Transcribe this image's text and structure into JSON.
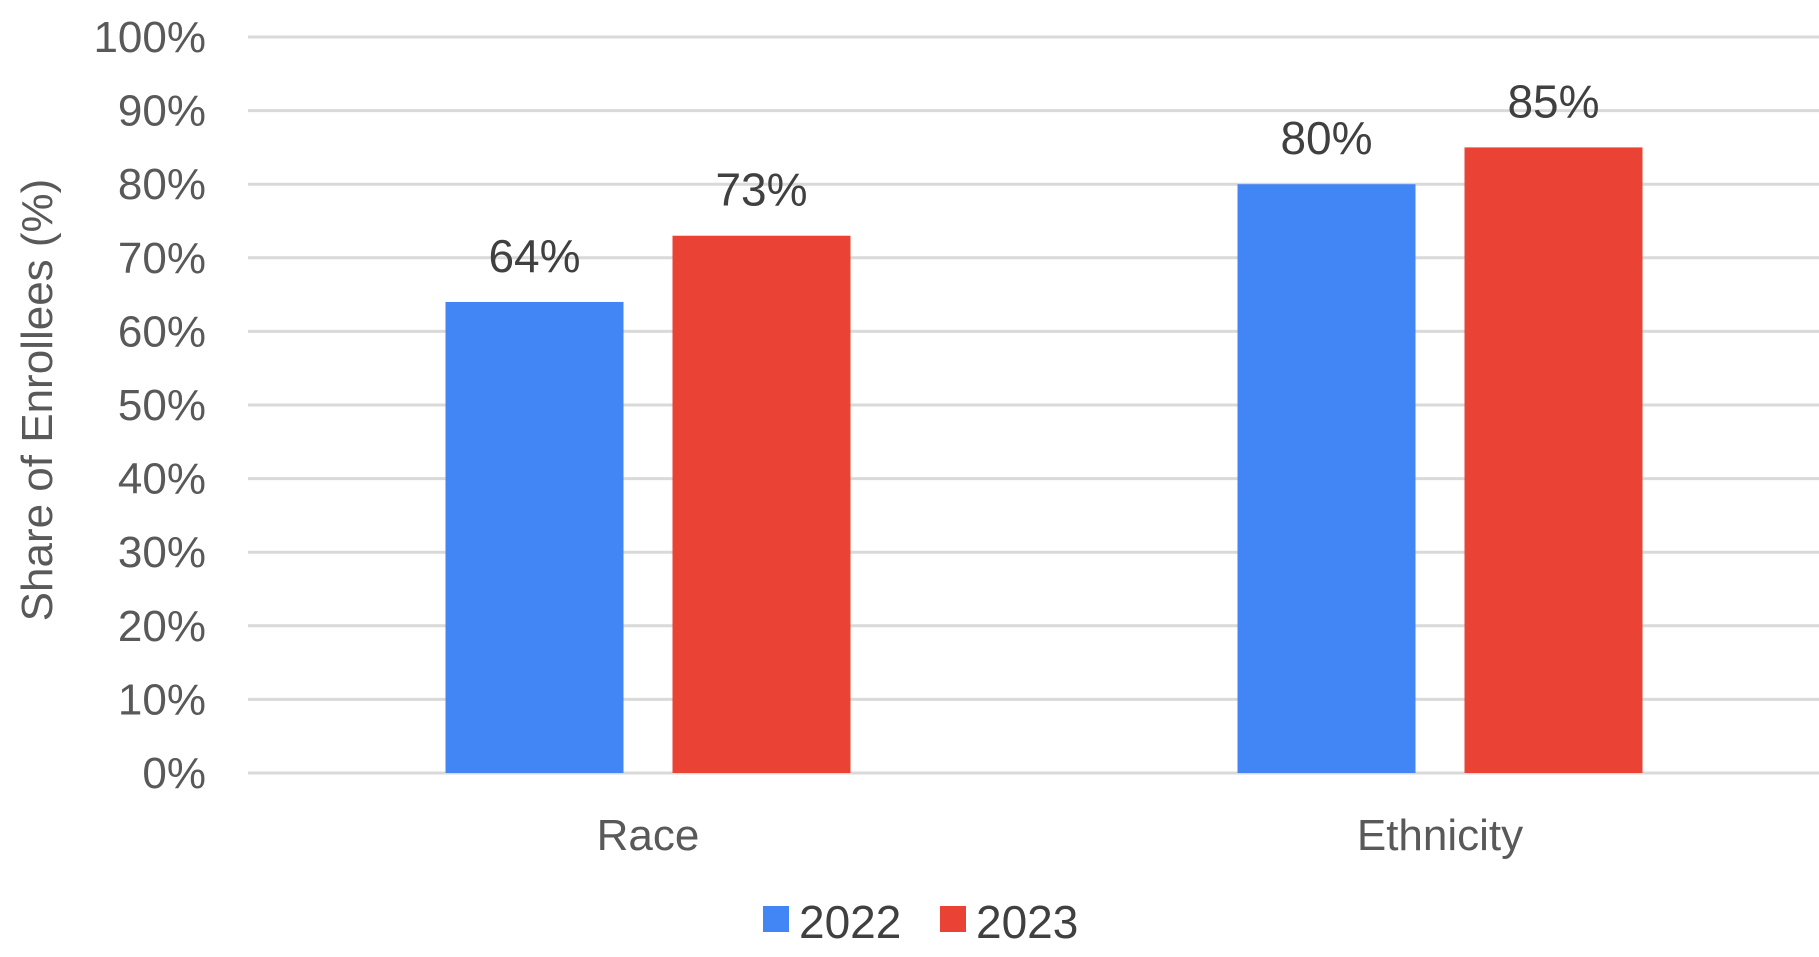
{
  "chart_data": {
    "type": "bar",
    "categories": [
      "Race",
      "Ethnicity"
    ],
    "series": [
      {
        "name": "2022",
        "values": [
          64,
          80
        ],
        "labels": [
          "64%",
          "80%"
        ],
        "color": "#4285f4"
      },
      {
        "name": "2023",
        "values": [
          73,
          85
        ],
        "labels": [
          "73%",
          "85%"
        ],
        "color": "#ea4335"
      }
    ],
    "ylabel": "Share of Enrollees (%)",
    "xlabel": "",
    "ylim": [
      0,
      100
    ],
    "yticks": [
      "0%",
      "10%",
      "20%",
      "30%",
      "40%",
      "50%",
      "60%",
      "70%",
      "80%",
      "90%",
      "100%"
    ],
    "grid": true,
    "legend": "bottom"
  }
}
